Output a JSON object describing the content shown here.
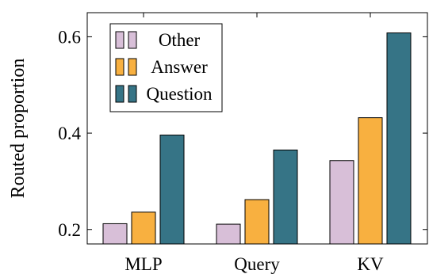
{
  "chart_data": {
    "type": "bar",
    "categories": [
      "MLP",
      "Query",
      "KV"
    ],
    "series": [
      {
        "name": "Other",
        "color": "#d8bfd8",
        "values": [
          0.212,
          0.211,
          0.343
        ]
      },
      {
        "name": "Answer",
        "color": "#f8b040",
        "values": [
          0.236,
          0.262,
          0.432
        ]
      },
      {
        "name": "Question",
        "color": "#367486",
        "values": [
          0.396,
          0.365,
          0.608
        ]
      }
    ],
    "title": "",
    "xlabel": "",
    "ylabel": "Routed proportion",
    "ylim": [
      0.17,
      0.65
    ],
    "yticks": [
      0.2,
      0.4,
      0.6
    ],
    "ytick_labels": [
      "0.2",
      "0.4",
      "0.6"
    ],
    "grid": false,
    "legend_position": "top-left"
  }
}
